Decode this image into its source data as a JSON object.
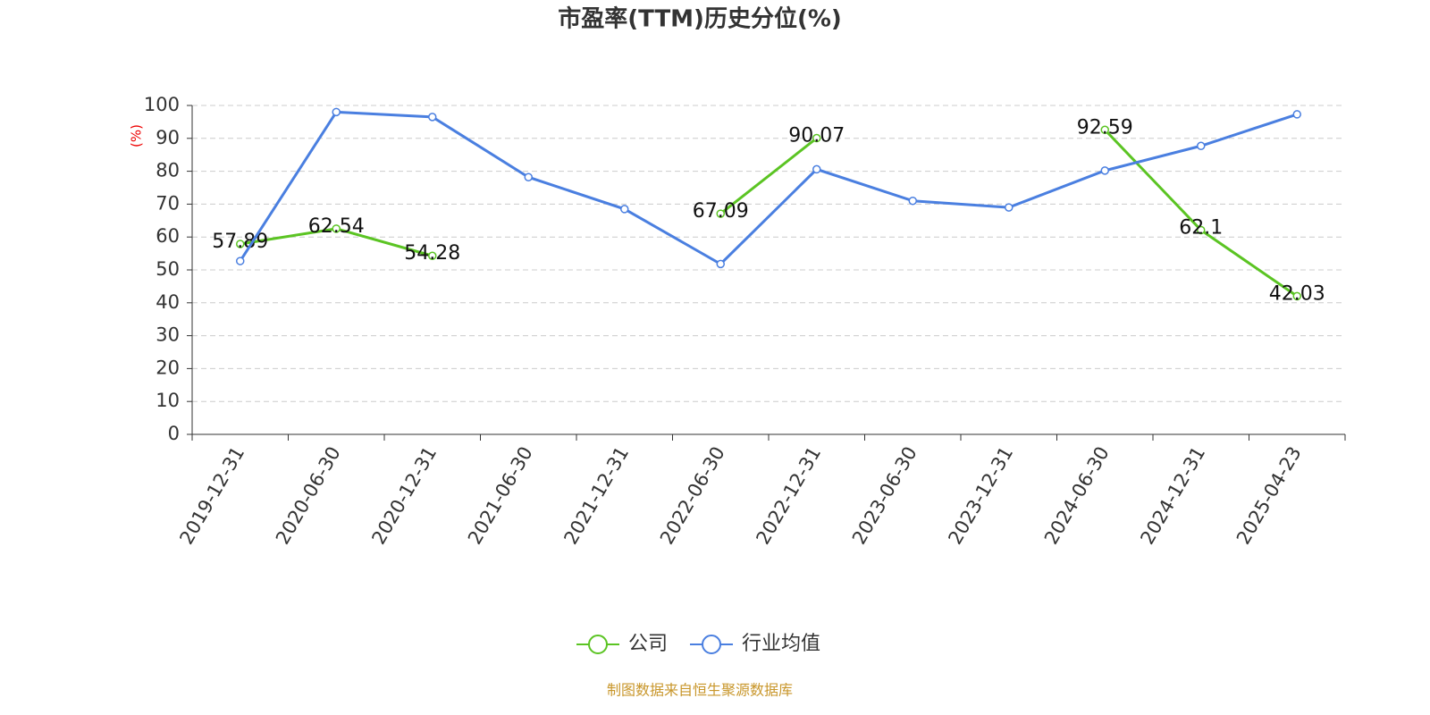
{
  "chart_data": {
    "type": "line",
    "title": "市盈率(TTM)历史分位(%)",
    "y_label": "(%)",
    "source": "制图数据来自恒生聚源数据库",
    "categories": [
      "2019-12-31",
      "2020-06-30",
      "2020-12-31",
      "2021-06-30",
      "2021-12-31",
      "2022-06-30",
      "2022-12-31",
      "2023-06-30",
      "2023-12-31",
      "2024-06-30",
      "2024-12-31",
      "2025-04-23"
    ],
    "series": [
      {
        "name": "公司",
        "color": "#5bc423",
        "values": [
          57.89,
          62.54,
          54.28,
          null,
          null,
          67.09,
          90.07,
          null,
          null,
          92.59,
          62.1,
          42.03
        ],
        "show_labels": true
      },
      {
        "name": "行业均值",
        "color": "#4a7fe0",
        "values": [
          52.7,
          98.0,
          96.5,
          78.2,
          68.5,
          51.8,
          80.6,
          71.0,
          69.0,
          80.2,
          87.7,
          97.3
        ],
        "show_labels": false
      }
    ],
    "ylim": [
      0,
      100
    ],
    "yticks": [
      0,
      10,
      20,
      30,
      40,
      50,
      60,
      70,
      80,
      90,
      100
    ],
    "grid": true
  }
}
